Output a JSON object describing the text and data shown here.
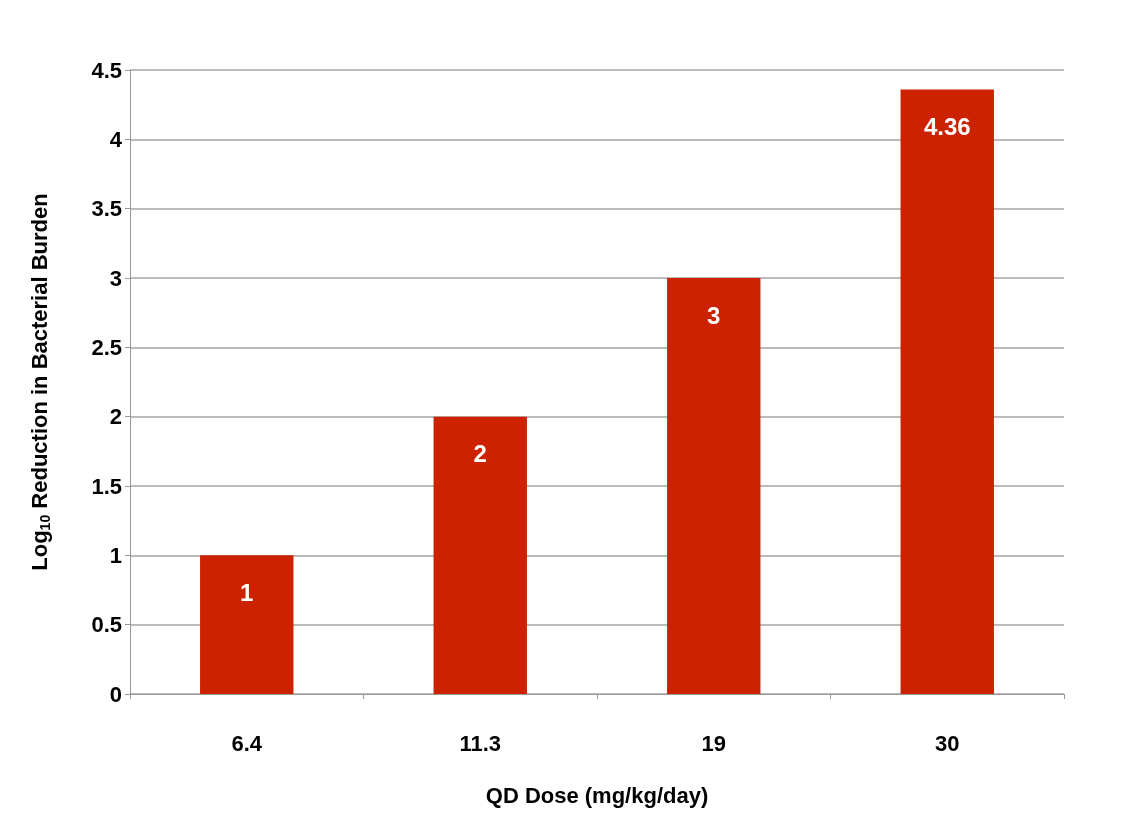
{
  "chart_data": {
    "type": "bar",
    "xlabel": "QD Dose (mg/kg/day)",
    "ylabel": "Log$_{10}$ Reduction in Bacterial Burden",
    "categories": [
      "6.4",
      "11.3",
      "19",
      "30"
    ],
    "values": [
      1,
      2,
      3,
      4.36
    ],
    "color": "#cc2200",
    "data_labels": true,
    "ylim": [
      0,
      4.5
    ],
    "yticks": [
      0,
      0.5,
      1,
      1.5,
      2,
      2.5,
      3,
      3.5,
      4,
      4.5
    ],
    "grid": "y"
  }
}
